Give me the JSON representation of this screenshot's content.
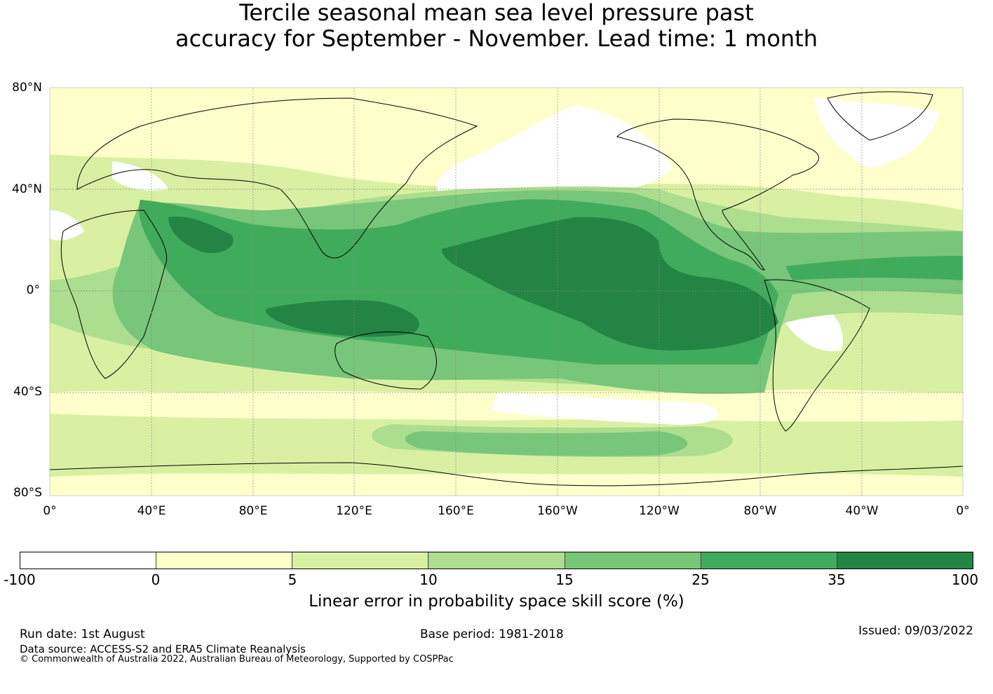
{
  "title": {
    "line1": "Tercile seasonal mean sea level pressure past",
    "line2": "accuracy for September - November. Lead time: 1 month"
  },
  "map": {
    "lat_labels": [
      "80°N",
      "40°N",
      "0°",
      "40°S",
      "80°S"
    ],
    "lon_labels": [
      "0°",
      "40°E",
      "80°E",
      "120°E",
      "160°E",
      "160°W",
      "120°W",
      "80°W",
      "40°W",
      "0°"
    ],
    "lat_range": [
      -80,
      80
    ],
    "lon_range_east": [
      0,
      360
    ],
    "gridlines": true
  },
  "colorbar": {
    "colors": [
      "#ffffff",
      "#ffffcc",
      "#d9f0a3",
      "#addd8e",
      "#78c679",
      "#41ab5d",
      "#238443"
    ],
    "tick_labels": [
      "-100",
      "0",
      "5",
      "10",
      "15",
      "25",
      "35",
      "100"
    ],
    "label": "Linear error in probability space skill score (%)"
  },
  "footer": {
    "run_date": "Run date: 1st August",
    "base_period": "Base period: 1981-2018",
    "issued": "Issued: 09/03/2022",
    "data_source": "Data source: ACCESS-S2 and ERA5 Climate Reanalysis",
    "copyright": "© Commonwealth of Australia 2022, Australian Bureau of Meteorology, Supported by COSPPac"
  }
}
